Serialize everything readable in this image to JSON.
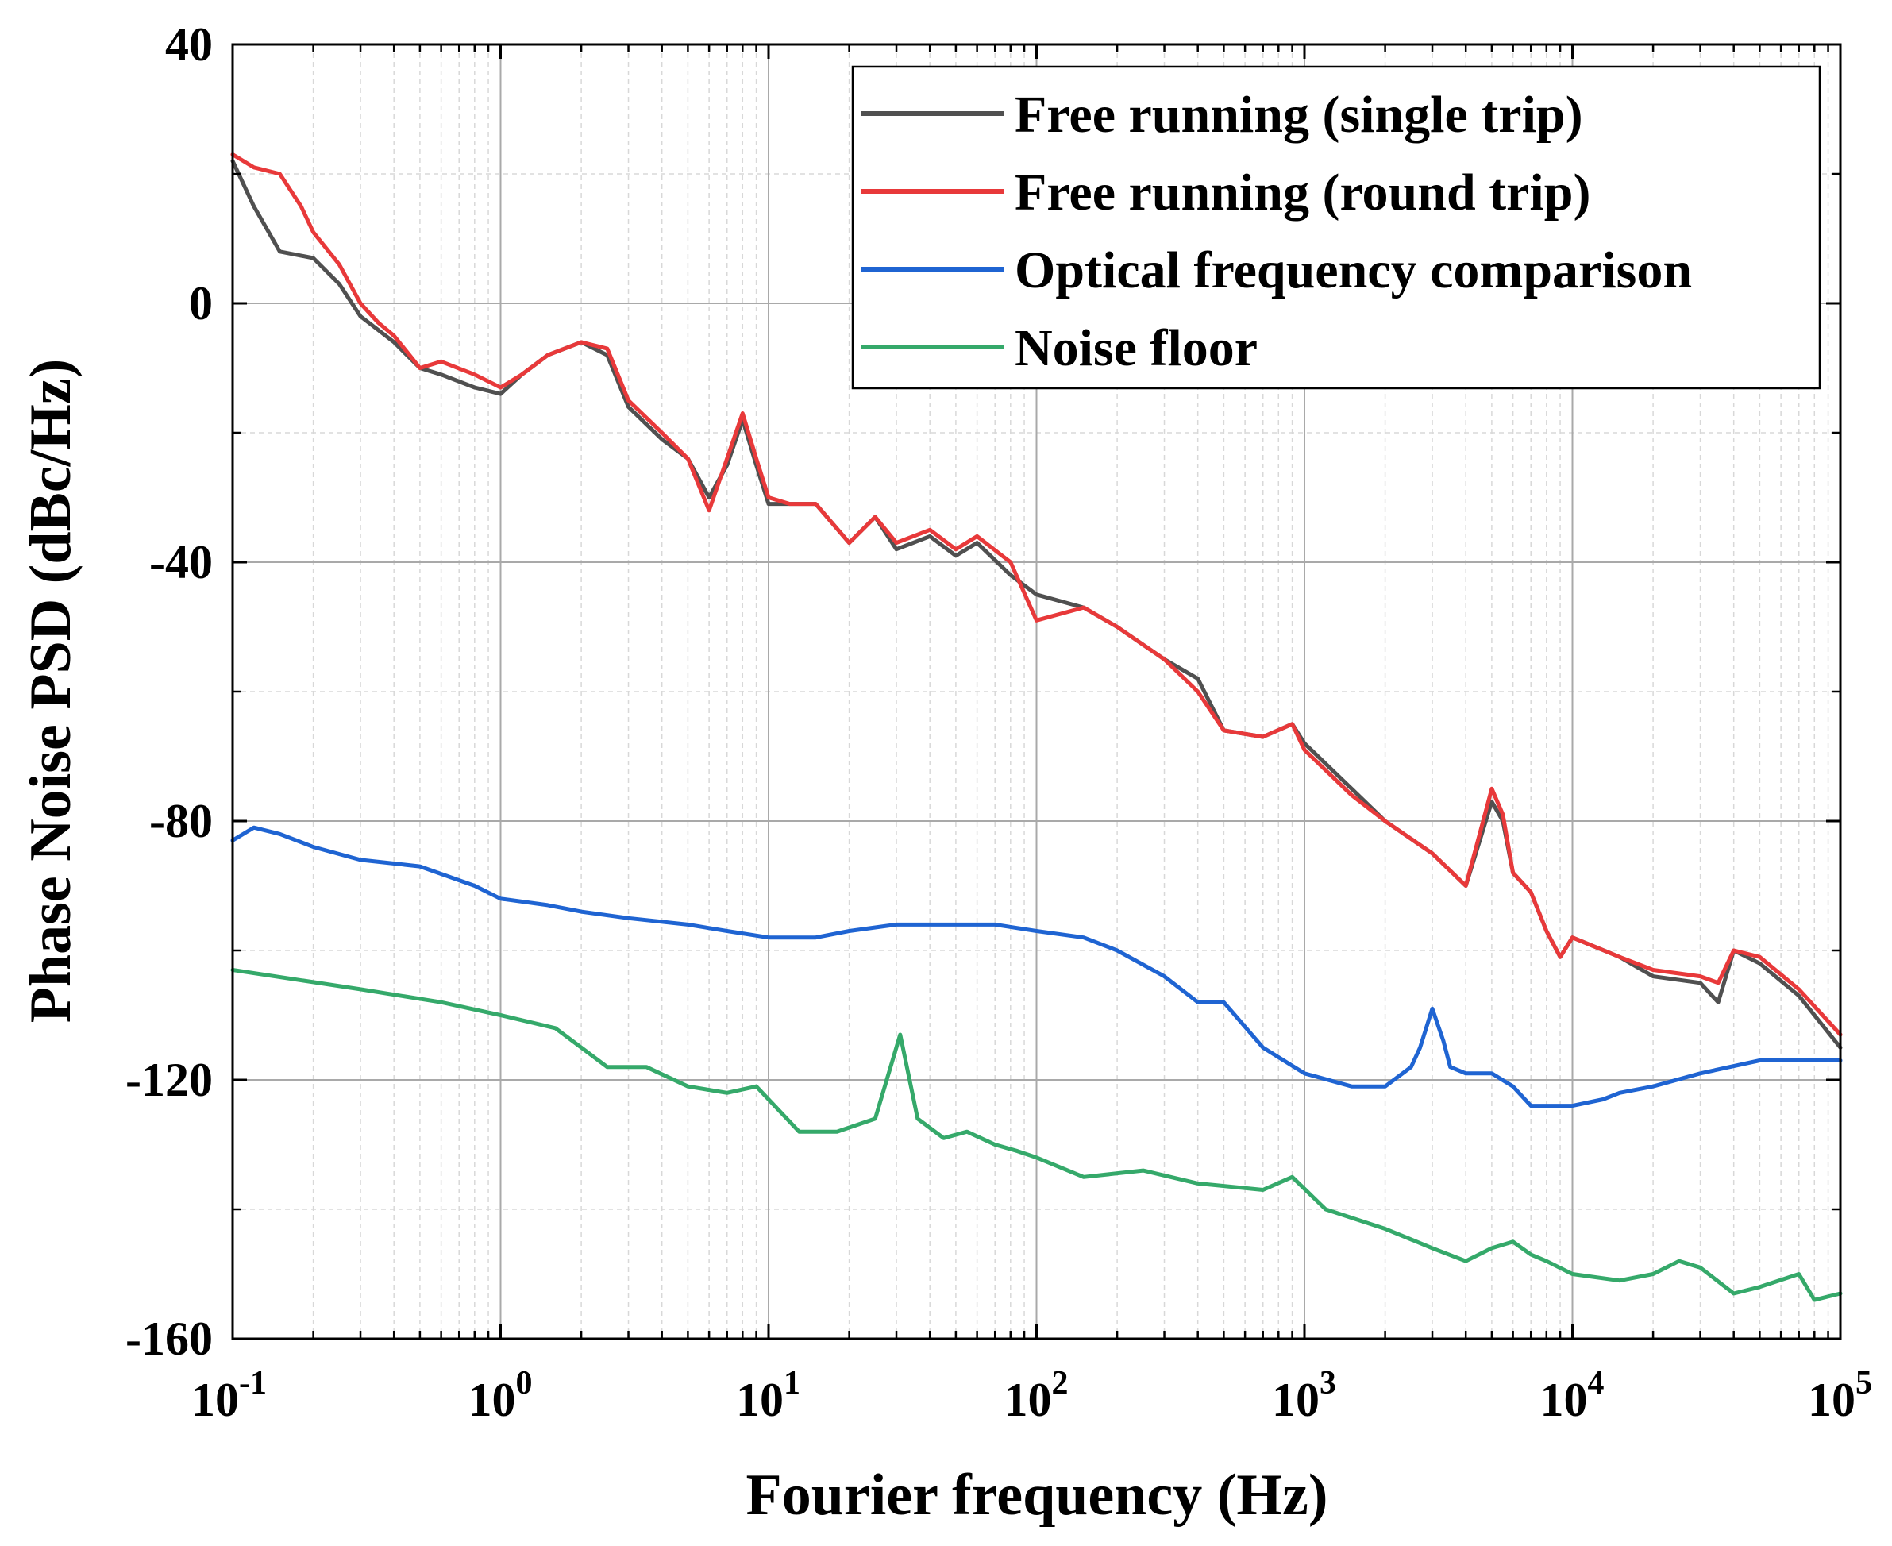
{
  "chart_data": {
    "type": "line",
    "xscale": "log",
    "xlabel": "Fourier frequency (Hz)",
    "ylabel": "Phase Noise PSD (dBc/Hz)",
    "xlim": [
      0.1,
      100000
    ],
    "ylim": [
      -160,
      40
    ],
    "x_ticks": [
      {
        "value": 0.1,
        "base": "10",
        "exp": "-1"
      },
      {
        "value": 1,
        "base": "10",
        "exp": "0"
      },
      {
        "value": 10,
        "base": "10",
        "exp": "1"
      },
      {
        "value": 100,
        "base": "10",
        "exp": "2"
      },
      {
        "value": 1000,
        "base": "10",
        "exp": "3"
      },
      {
        "value": 10000,
        "base": "10",
        "exp": "4"
      },
      {
        "value": 100000,
        "base": "10",
        "exp": "5"
      }
    ],
    "y_ticks": [
      {
        "value": 40,
        "label": "40"
      },
      {
        "value": 0,
        "label": "0"
      },
      {
        "value": -40,
        "label": "-40"
      },
      {
        "value": -80,
        "label": "-80"
      },
      {
        "value": -120,
        "label": "-120"
      },
      {
        "value": -160,
        "label": "-160"
      }
    ],
    "y_minor": [
      20,
      -20,
      -60,
      -100,
      -140
    ],
    "legend_position": "top-right",
    "series": [
      {
        "name": "Free running (single trip)",
        "color": "#505050",
        "x": [
          0.1,
          0.12,
          0.15,
          0.2,
          0.25,
          0.3,
          0.4,
          0.5,
          0.6,
          0.8,
          1.0,
          1.2,
          1.5,
          2.0,
          2.5,
          3.0,
          4.0,
          5.0,
          6.0,
          7.0,
          8.0,
          9.0,
          10,
          12,
          15,
          20,
          25,
          30,
          40,
          50,
          60,
          80,
          100,
          150,
          200,
          300,
          400,
          500,
          700,
          900,
          1000,
          1500,
          2000,
          3000,
          4000,
          5000,
          5500,
          6000,
          7000,
          8000,
          9000,
          10000,
          15000,
          20000,
          30000,
          35000,
          40000,
          50000,
          70000,
          100000
        ],
        "values": [
          22,
          15,
          8,
          7,
          3,
          -2,
          -6,
          -10,
          -11,
          -13,
          -14,
          -11,
          -8,
          -6,
          -8,
          -16,
          -21,
          -24,
          -30,
          -25,
          -18,
          -25,
          -31,
          -31,
          -31,
          -37,
          -33,
          -38,
          -36,
          -39,
          -37,
          -42,
          -45,
          -47,
          -50,
          -55,
          -58,
          -66,
          -67,
          -65,
          -68,
          -75,
          -80,
          -85,
          -90,
          -77,
          -80,
          -88,
          -91,
          -97,
          -101,
          -98,
          -101,
          -104,
          -105,
          -108,
          -100,
          -102,
          -107,
          -115
        ]
      },
      {
        "name": "Free running (round trip)",
        "color": "#e8393a",
        "x": [
          0.1,
          0.12,
          0.15,
          0.18,
          0.2,
          0.25,
          0.3,
          0.35,
          0.4,
          0.5,
          0.6,
          0.8,
          1.0,
          1.2,
          1.5,
          2.0,
          2.5,
          3.0,
          4.0,
          5.0,
          6.0,
          7.0,
          8.0,
          9.0,
          10,
          12,
          15,
          20,
          25,
          30,
          40,
          50,
          60,
          80,
          100,
          150,
          200,
          300,
          400,
          500,
          700,
          900,
          1000,
          1500,
          2000,
          3000,
          4000,
          5000,
          5500,
          6000,
          7000,
          8000,
          9000,
          10000,
          15000,
          20000,
          30000,
          35000,
          40000,
          50000,
          70000,
          100000
        ],
        "values": [
          23,
          21,
          20,
          15,
          11,
          6,
          0,
          -3,
          -5,
          -10,
          -9,
          -11,
          -13,
          -11,
          -8,
          -6,
          -7,
          -15,
          -20,
          -24,
          -32,
          -24,
          -17,
          -24,
          -30,
          -31,
          -31,
          -37,
          -33,
          -37,
          -35,
          -38,
          -36,
          -40,
          -49,
          -47,
          -50,
          -55,
          -60,
          -66,
          -67,
          -65,
          -69,
          -76,
          -80,
          -85,
          -90,
          -75,
          -79,
          -88,
          -91,
          -97,
          -101,
          -98,
          -101,
          -103,
          -104,
          -105,
          -100,
          -101,
          -106,
          -113
        ]
      },
      {
        "name": "Optical frequency comparison",
        "color": "#1f64d2",
        "x": [
          0.1,
          0.12,
          0.15,
          0.2,
          0.3,
          0.5,
          0.8,
          1.0,
          1.5,
          2.0,
          3.0,
          5.0,
          7.0,
          10,
          15,
          20,
          30,
          50,
          70,
          100,
          150,
          200,
          300,
          400,
          500,
          700,
          1000,
          1500,
          2000,
          2500,
          2700,
          3000,
          3300,
          3500,
          4000,
          5000,
          6000,
          7000,
          8000,
          9000,
          10000,
          13000,
          15000,
          20000,
          30000,
          50000,
          70000,
          100000
        ],
        "values": [
          -83,
          -81,
          -82,
          -84,
          -86,
          -87,
          -90,
          -92,
          -93,
          -94,
          -95,
          -96,
          -97,
          -98,
          -98,
          -97,
          -96,
          -96,
          -96,
          -97,
          -98,
          -100,
          -104,
          -108,
          -108,
          -115,
          -119,
          -121,
          -121,
          -118,
          -115,
          -109,
          -114,
          -118,
          -119,
          -119,
          -121,
          -124,
          -124,
          -124,
          -124,
          -123,
          -122,
          -121,
          -119,
          -117,
          -117,
          -117
        ]
      },
      {
        "name": "Noise floor",
        "color": "#35a96a",
        "x": [
          0.1,
          0.3,
          0.6,
          1.0,
          1.6,
          2.5,
          3.5,
          5.0,
          7.0,
          9.0,
          10,
          13,
          18,
          25,
          31,
          36,
          45,
          55,
          70,
          85,
          100,
          150,
          250,
          400,
          700,
          900,
          1200,
          2000,
          3000,
          4000,
          5000,
          6000,
          7000,
          8000,
          10000,
          15000,
          20000,
          25000,
          30000,
          40000,
          50000,
          70000,
          80000,
          100000
        ],
        "values": [
          -103,
          -106,
          -108,
          -110,
          -112,
          -118,
          -118,
          -121,
          -122,
          -121,
          -123,
          -128,
          -128,
          -126,
          -113,
          -126,
          -129,
          -128,
          -130,
          -131,
          -132,
          -135,
          -134,
          -136,
          -137,
          -135,
          -140,
          -143,
          -146,
          -148,
          -146,
          -145,
          -147,
          -148,
          -150,
          -151,
          -150,
          -148,
          -149,
          -153,
          -152,
          -150,
          -154,
          -153
        ]
      }
    ]
  }
}
